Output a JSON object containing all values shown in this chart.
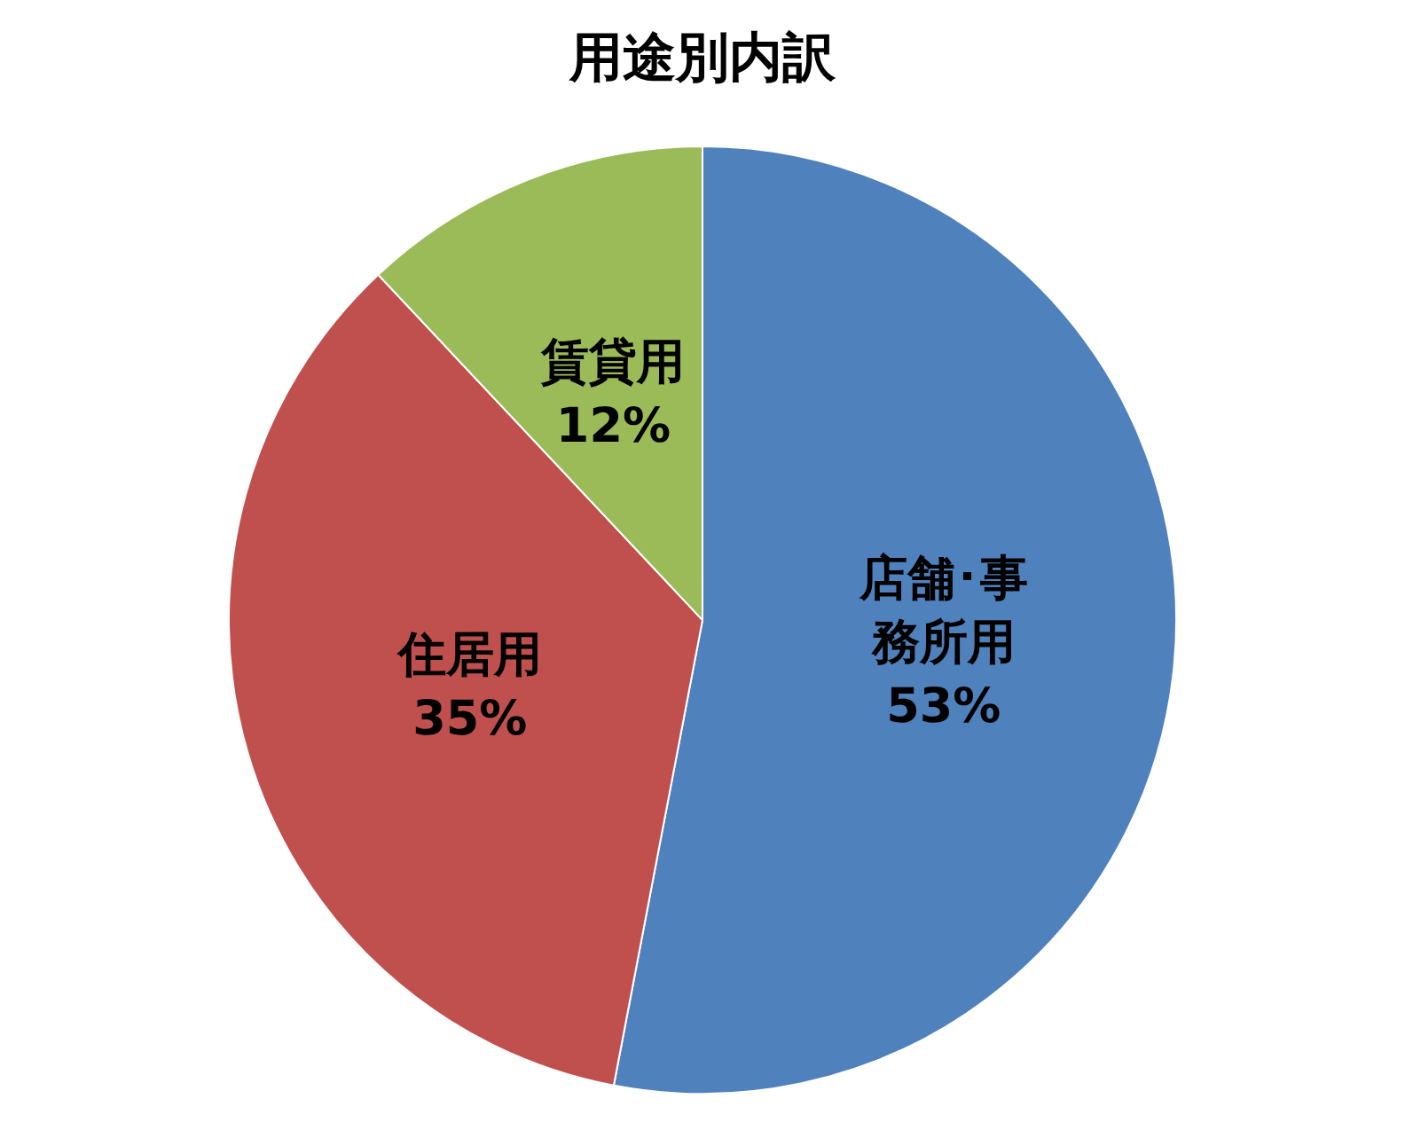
{
  "chart_data": {
    "type": "pie",
    "title": "用途別内訳",
    "categories": [
      "店舗･事務所用",
      "住居用",
      "賃貸用"
    ],
    "values": [
      53,
      35,
      12
    ],
    "value_labels": [
      "53%",
      "35%",
      "12%"
    ],
    "colors": [
      "#4f81bd",
      "#c0504d",
      "#9bbb59"
    ],
    "legend": false
  }
}
